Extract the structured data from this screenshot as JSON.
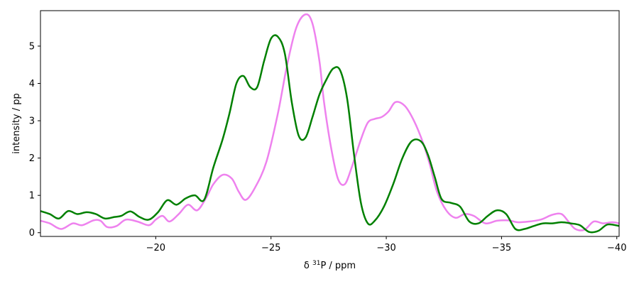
{
  "chart_data": {
    "type": "line",
    "title": "",
    "xlabel_prefix": "δ ",
    "xlabel_sup": "31",
    "xlabel_suffix": "P / ppm",
    "ylabel": "intensity / pp",
    "xlim": [
      -15,
      -40.1
    ],
    "ylim": [
      -0.1,
      5.95
    ],
    "x_inverted": true,
    "grid": false,
    "legend": "none",
    "x_ticks": [
      -20,
      -25,
      -30,
      -35,
      -40
    ],
    "x_tick_labels": [
      "−20",
      "−25",
      "−30",
      "−35",
      "−40"
    ],
    "y_ticks": [
      0,
      1,
      2,
      3,
      4,
      5
    ],
    "y_tick_labels": [
      "0",
      "1",
      "2",
      "3",
      "4",
      "5"
    ],
    "series": [
      {
        "color": "#ee82ee",
        "x": [
          -15.0,
          -15.4,
          -15.9,
          -16.4,
          -16.8,
          -17.3,
          -17.6,
          -17.9,
          -18.3,
          -18.7,
          -19.2,
          -19.7,
          -20.0,
          -20.3,
          -20.6,
          -21.0,
          -21.4,
          -21.8,
          -22.2,
          -22.5,
          -22.9,
          -23.3,
          -23.6,
          -23.9,
          -24.3,
          -24.8,
          -25.3,
          -25.7,
          -26.1,
          -26.5,
          -26.8,
          -27.1,
          -27.3,
          -27.6,
          -27.9,
          -28.2,
          -28.5,
          -28.9,
          -29.2,
          -29.5,
          -29.8,
          -30.1,
          -30.4,
          -30.8,
          -31.2,
          -31.6,
          -31.9,
          -32.2,
          -32.6,
          -33.0,
          -33.4,
          -33.8,
          -34.3,
          -34.8,
          -35.3,
          -35.7,
          -36.2,
          -36.7,
          -37.2,
          -37.6,
          -37.9,
          -38.2,
          -38.6,
          -39.0,
          -39.4,
          -39.8,
          -40.1
        ],
        "y": [
          0.32,
          0.25,
          0.1,
          0.25,
          0.2,
          0.33,
          0.32,
          0.15,
          0.18,
          0.35,
          0.3,
          0.2,
          0.35,
          0.45,
          0.3,
          0.5,
          0.75,
          0.6,
          0.95,
          1.3,
          1.55,
          1.45,
          1.1,
          0.88,
          1.2,
          1.9,
          3.2,
          4.5,
          5.5,
          5.85,
          5.6,
          4.6,
          3.5,
          2.3,
          1.45,
          1.3,
          1.75,
          2.5,
          2.95,
          3.05,
          3.1,
          3.25,
          3.5,
          3.4,
          3.0,
          2.4,
          1.8,
          1.1,
          0.6,
          0.4,
          0.5,
          0.45,
          0.25,
          0.32,
          0.33,
          0.28,
          0.3,
          0.35,
          0.48,
          0.5,
          0.3,
          0.1,
          0.08,
          0.3,
          0.25,
          0.28,
          0.25
        ]
      },
      {
        "color": "#008000",
        "x": [
          -15.0,
          -15.4,
          -15.8,
          -16.2,
          -16.6,
          -17.0,
          -17.4,
          -17.8,
          -18.2,
          -18.5,
          -18.9,
          -19.3,
          -19.7,
          -20.1,
          -20.5,
          -20.9,
          -21.3,
          -21.7,
          -22.1,
          -22.5,
          -22.9,
          -23.2,
          -23.5,
          -23.8,
          -24.1,
          -24.4,
          -24.7,
          -25.0,
          -25.3,
          -25.6,
          -25.9,
          -26.2,
          -26.5,
          -26.8,
          -27.1,
          -27.4,
          -27.7,
          -28.0,
          -28.3,
          -28.6,
          -28.9,
          -29.2,
          -29.5,
          -29.9,
          -30.3,
          -30.7,
          -31.1,
          -31.5,
          -31.8,
          -32.1,
          -32.4,
          -32.8,
          -33.2,
          -33.6,
          -34.0,
          -34.4,
          -34.8,
          -35.2,
          -35.6,
          -36.0,
          -36.4,
          -36.8,
          -37.2,
          -37.6,
          -38.0,
          -38.4,
          -38.8,
          -39.2,
          -39.6,
          -40.1
        ],
        "y": [
          0.58,
          0.5,
          0.38,
          0.58,
          0.5,
          0.55,
          0.5,
          0.38,
          0.42,
          0.45,
          0.57,
          0.42,
          0.35,
          0.55,
          0.87,
          0.75,
          0.92,
          1.0,
          0.88,
          1.75,
          2.5,
          3.2,
          4.0,
          4.2,
          3.9,
          3.9,
          4.6,
          5.2,
          5.25,
          4.8,
          3.5,
          2.6,
          2.55,
          3.1,
          3.7,
          4.1,
          4.4,
          4.35,
          3.6,
          2.1,
          0.8,
          0.25,
          0.32,
          0.7,
          1.3,
          2.0,
          2.45,
          2.45,
          2.1,
          1.5,
          0.9,
          0.8,
          0.7,
          0.3,
          0.25,
          0.45,
          0.6,
          0.5,
          0.1,
          0.1,
          0.18,
          0.25,
          0.25,
          0.28,
          0.25,
          0.2,
          0.02,
          0.05,
          0.22,
          0.18
        ]
      }
    ]
  }
}
